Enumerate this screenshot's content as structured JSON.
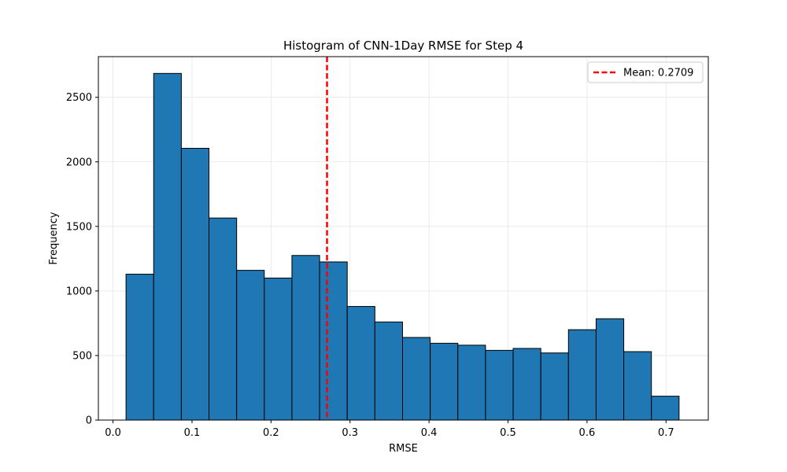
{
  "chart_data": {
    "type": "bar",
    "title": "Histogram of CNN-1Day RMSE for Step 4",
    "xlabel": "RMSE",
    "ylabel": "Frequency",
    "xlim": [
      -0.0185,
      0.7535
    ],
    "ylim": [
      0,
      2815
    ],
    "xticks": [
      0.0,
      0.1,
      0.2,
      0.3,
      0.4,
      0.5,
      0.6,
      0.7
    ],
    "xtick_labels": [
      "0.0",
      "0.1",
      "0.2",
      "0.3",
      "0.4",
      "0.5",
      "0.6",
      "0.7"
    ],
    "yticks": [
      0,
      500,
      1000,
      1500,
      2000,
      2500
    ],
    "ytick_labels": [
      "0",
      "500",
      "1000",
      "1500",
      "2000",
      "2500"
    ],
    "grid": true,
    "bin_edges": [
      0.0165,
      0.0515,
      0.0865,
      0.1215,
      0.1565,
      0.1915,
      0.2265,
      0.2615,
      0.2965,
      0.3315,
      0.3665,
      0.4015,
      0.4365,
      0.4715,
      0.5065,
      0.5415,
      0.5765,
      0.6115,
      0.6465,
      0.6815,
      0.7165
    ],
    "values": [
      1130,
      2685,
      2105,
      1565,
      1160,
      1100,
      1275,
      1225,
      880,
      760,
      640,
      595,
      580,
      540,
      555,
      520,
      700,
      785,
      530,
      185
    ],
    "bar_color": "#1f77b4",
    "bar_edge_color": "#000000",
    "mean_line": {
      "x": 0.2709,
      "label": "Mean: 0.2709",
      "color": "#ff0000",
      "style": "dashed"
    },
    "legend_position": "top-right"
  }
}
